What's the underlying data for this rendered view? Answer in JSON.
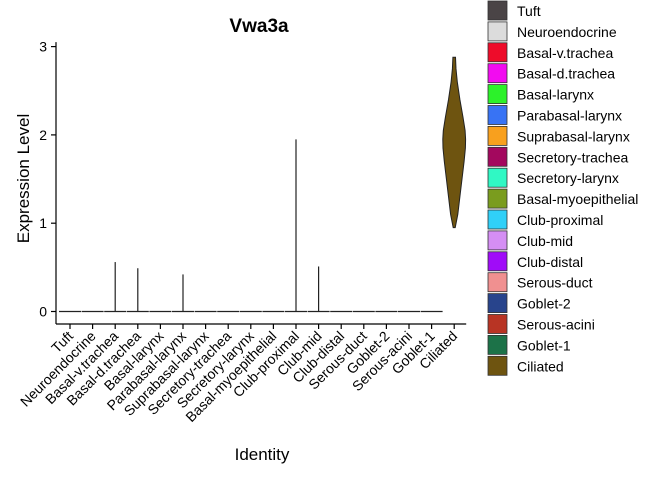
{
  "chart_data": {
    "type": "violin",
    "title": "Vwa3a",
    "xlabel": "Identity",
    "ylabel": "Expression Level",
    "ylim": [
      -0.1,
      3.05
    ],
    "yticks": [
      0,
      1,
      2,
      3
    ],
    "grid": false,
    "legend_position": "right",
    "categories": [
      "Tuft",
      "Neuroendocrine",
      "Basal-v.trachea",
      "Basal-d.trachea",
      "Basal-larynx",
      "Parabasal-larynx",
      "Suprabasal-larynx",
      "Secretory-trachea",
      "Secretory-larynx",
      "Basal-myoepithelial",
      "Club-proximal",
      "Club-mid",
      "Club-distal",
      "Serous-duct",
      "Goblet-2",
      "Serous-acini",
      "Goblet-1",
      "Ciliated"
    ],
    "colors": [
      "#4a4446",
      "#dcdcdc",
      "#ee0c2a",
      "#f20cf0",
      "#2cf22a",
      "#3873f4",
      "#f8a01e",
      "#a3085e",
      "#30f8c4",
      "#7a9c1e",
      "#30d0f8",
      "#d58ef4",
      "#a00cf8",
      "#f09090",
      "#28448c",
      "#b83424",
      "#1c7248",
      "#6e5410"
    ],
    "max_values": [
      0,
      0,
      0.56,
      0.49,
      0,
      0.42,
      0,
      0,
      0,
      0,
      1.95,
      0.51,
      0,
      0,
      0,
      0,
      0,
      2.88
    ],
    "ciliated_density": {
      "y": [
        0.95,
        1.1,
        1.3,
        1.5,
        1.7,
        1.85,
        1.95,
        2.05,
        2.2,
        2.4,
        2.6,
        2.75,
        2.88
      ],
      "half_width": [
        0.04,
        0.14,
        0.22,
        0.3,
        0.38,
        0.43,
        0.44,
        0.42,
        0.34,
        0.22,
        0.12,
        0.07,
        0.05
      ]
    }
  }
}
